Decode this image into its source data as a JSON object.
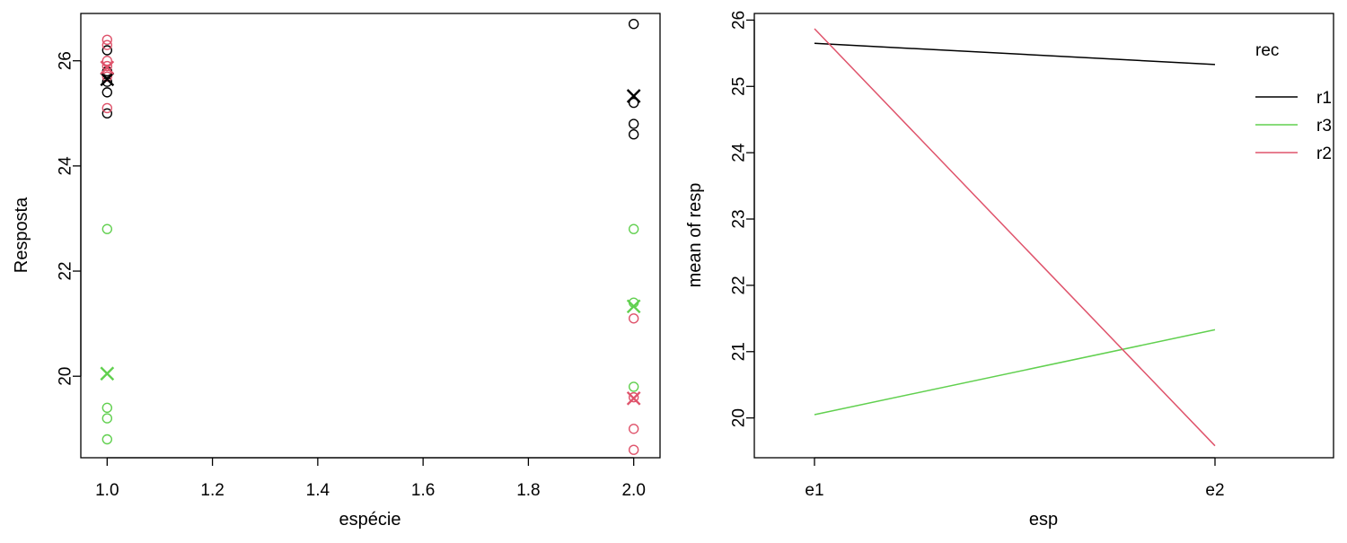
{
  "colors": {
    "r1": "#000000",
    "r2": "#DF536B",
    "r3": "#61D04F"
  },
  "chart_data": [
    {
      "type": "scatter",
      "title": "",
      "xlabel": "espécie",
      "ylabel": "Resposta",
      "xlim": [
        0.95,
        2.05
      ],
      "ylim": [
        18.45,
        26.9
      ],
      "x_ticks": [
        1.0,
        1.2,
        1.4,
        1.6,
        1.8,
        2.0
      ],
      "x_tick_labels": [
        "1.0",
        "1.2",
        "1.4",
        "1.6",
        "1.8",
        "2.0"
      ],
      "y_ticks": [
        20,
        22,
        24,
        26
      ],
      "y_tick_labels": [
        "20",
        "22",
        "24",
        "26"
      ],
      "series": [
        {
          "group": "r1",
          "color": "#000000",
          "marker": "circle",
          "x": [
            1,
            1,
            1,
            1,
            1,
            2,
            2,
            2,
            2
          ],
          "y": [
            25.0,
            25.4,
            25.6,
            25.8,
            26.2,
            24.6,
            24.8,
            25.2,
            26.7
          ]
        },
        {
          "group": "r2",
          "color": "#DF536B",
          "marker": "circle",
          "x": [
            1,
            1,
            1,
            1,
            1,
            1,
            2,
            2,
            2,
            2
          ],
          "y": [
            25.1,
            25.7,
            25.9,
            26.0,
            26.3,
            26.4,
            18.6,
            19.0,
            19.6,
            21.1
          ]
        },
        {
          "group": "r3",
          "color": "#61D04F",
          "marker": "circle",
          "x": [
            1,
            1,
            1,
            1,
            2,
            2,
            2
          ],
          "y": [
            18.8,
            19.2,
            19.4,
            22.8,
            19.8,
            21.4,
            22.8
          ]
        },
        {
          "group": "r1 mean",
          "color": "#000000",
          "marker": "x",
          "x": [
            1,
            2
          ],
          "y": [
            25.65,
            25.33
          ]
        },
        {
          "group": "r2 mean",
          "color": "#DF536B",
          "marker": "x",
          "x": [
            1,
            2
          ],
          "y": [
            25.87,
            19.58
          ]
        },
        {
          "group": "r3 mean",
          "color": "#61D04F",
          "marker": "x",
          "x": [
            1,
            2
          ],
          "y": [
            20.05,
            21.33
          ]
        }
      ]
    },
    {
      "type": "line",
      "title": "",
      "xlabel": "esp",
      "ylabel": "mean of  resp",
      "categories": [
        "e1",
        "e2"
      ],
      "ylim": [
        19.4,
        26.1
      ],
      "y_ticks": [
        20,
        21,
        22,
        23,
        24,
        25,
        26
      ],
      "y_tick_labels": [
        "20",
        "21",
        "22",
        "23",
        "24",
        "25",
        "26"
      ],
      "legend": {
        "title": "rec",
        "position": "top-right",
        "entries": [
          "r1",
          "r3",
          "r2"
        ]
      },
      "series": [
        {
          "name": "r1",
          "color": "#000000",
          "values": [
            25.65,
            25.33
          ]
        },
        {
          "name": "r3",
          "color": "#61D04F",
          "values": [
            20.05,
            21.33
          ]
        },
        {
          "name": "r2",
          "color": "#DF536B",
          "values": [
            25.87,
            19.58
          ]
        }
      ]
    }
  ]
}
